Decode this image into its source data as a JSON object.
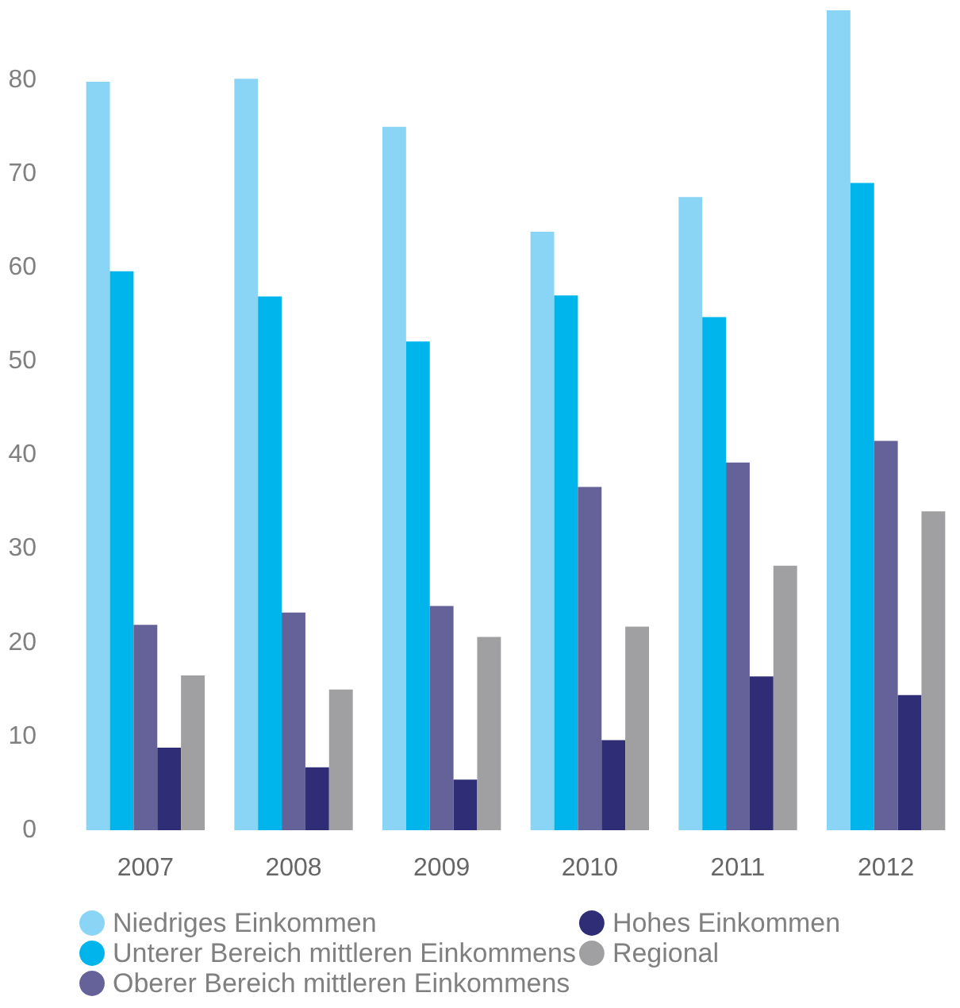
{
  "chart_data": {
    "type": "bar",
    "categories": [
      "2007",
      "2008",
      "2009",
      "2010",
      "2011",
      "2012"
    ],
    "series": [
      {
        "name": "Niedriges Einkommen",
        "color": "#8ad5f6",
        "values": [
          79.8,
          80.1,
          75.0,
          63.8,
          67.5,
          87.4
        ]
      },
      {
        "name": "Unterer Bereich mittleren Einkommens",
        "color": "#00b5ec",
        "values": [
          59.6,
          56.9,
          52.1,
          57.0,
          54.7,
          69.0
        ]
      },
      {
        "name": "Oberer Bereich mittleren Einkommens",
        "color": "#65629a",
        "values": [
          21.9,
          23.2,
          23.9,
          36.6,
          39.2,
          41.5
        ]
      },
      {
        "name": "Hohes Einkommen",
        "color": "#2f2d75",
        "values": [
          8.8,
          6.7,
          5.4,
          9.6,
          16.4,
          14.4
        ]
      },
      {
        "name": "Regional",
        "color": "#a0a0a2",
        "values": [
          16.5,
          15.0,
          20.6,
          21.7,
          28.2,
          34.0
        ]
      }
    ],
    "ylim": [
      0,
      88
    ],
    "yticks": [
      0,
      10,
      20,
      30,
      40,
      50,
      60,
      70,
      80
    ],
    "grid": false,
    "legend": "bottom"
  }
}
